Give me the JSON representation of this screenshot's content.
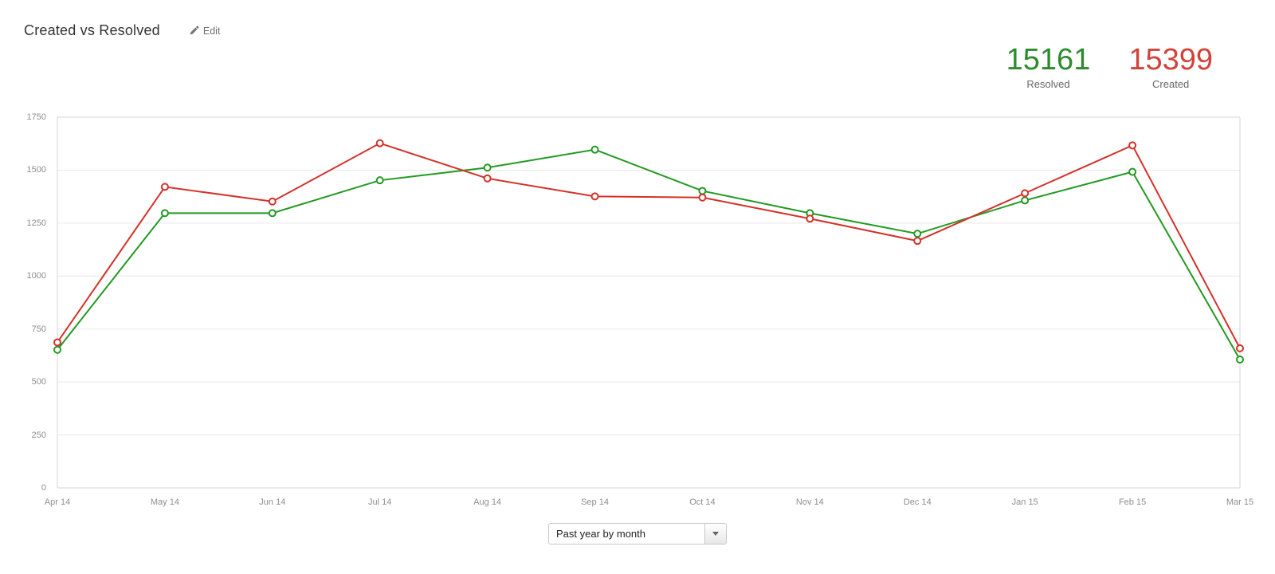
{
  "header": {
    "title": "Created vs Resolved",
    "edit_label": "Edit"
  },
  "stats": {
    "resolved": {
      "value": "15161",
      "label": "Resolved",
      "color": "#2d8b2d"
    },
    "created": {
      "value": "15399",
      "label": "Created",
      "color": "#d3423a"
    }
  },
  "chart_data": {
    "type": "line",
    "title": "Created vs Resolved",
    "categories": [
      "Apr 14",
      "May 14",
      "Jun 14",
      "Jul 14",
      "Aug 14",
      "Sep 14",
      "Oct 14",
      "Nov 14",
      "Dec 14",
      "Jan 15",
      "Feb 15",
      "Mar 15"
    ],
    "series": [
      {
        "name": "Created",
        "color": "#d2322a",
        "marker": "hollow-circle",
        "total": 15399,
        "values": [
          687,
          1421,
          1352,
          1627,
          1461,
          1376,
          1371,
          1271,
          1166,
          1391,
          1617,
          659
        ]
      },
      {
        "name": "Resolved",
        "color": "#229922",
        "marker": "hollow-circle",
        "total": 15161,
        "values": [
          652,
          1297,
          1297,
          1452,
          1512,
          1597,
          1402,
          1297,
          1200,
          1357,
          1492,
          606
        ]
      }
    ],
    "xlabel": "",
    "ylabel": "",
    "ylim": [
      0,
      1750
    ],
    "y_ticks": [
      0,
      250,
      500,
      750,
      1000,
      1250,
      1500,
      1750
    ],
    "grid": "horizontal",
    "legend_position": "none"
  },
  "footer": {
    "period_selector": {
      "value": "Past year by month"
    }
  },
  "colors": {
    "grid": "#e8e8e8",
    "plot_border": "#d5d5d5",
    "tick_label": "#8e8e8e"
  }
}
